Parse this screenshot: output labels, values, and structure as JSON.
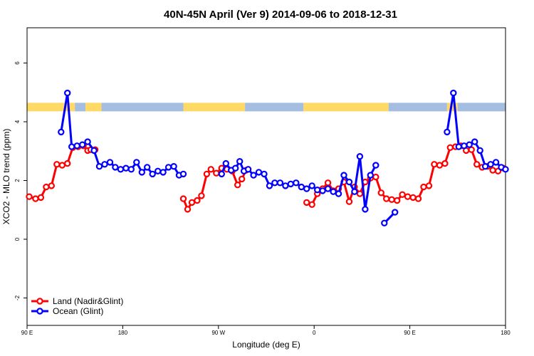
{
  "chart_data": {
    "type": "line",
    "title": "40N-45N April (Ver 9)   2014-09-06 to 2018-12-31",
    "xlabel": "Longitude (deg E)",
    "ylabel": "XCO2 - MLO trend (ppm)",
    "x_ticks": [
      {
        "value": 90,
        "label": "90 E"
      },
      {
        "value": 180,
        "label": "180"
      },
      {
        "value": 270,
        "label": "90 W"
      },
      {
        "value": 360,
        "label": "0"
      },
      {
        "value": 450,
        "label": "90 E"
      },
      {
        "value": 540,
        "label": "180"
      }
    ],
    "y_ticks": [
      -2,
      0,
      2,
      4,
      6
    ],
    "xlim": [
      90,
      540
    ],
    "ylim": [
      -3,
      7.2
    ],
    "grid": false,
    "legend_position": "bottom-left",
    "land_sea_bar": {
      "y": 4.5,
      "segments": [
        {
          "from": 90,
          "to": 135,
          "color": "#ffd966"
        },
        {
          "from": 135,
          "to": 145,
          "color": "#a4bde0"
        },
        {
          "from": 145,
          "to": 160,
          "color": "#ffd966"
        },
        {
          "from": 160,
          "to": 237,
          "color": "#a4bde0"
        },
        {
          "from": 237,
          "to": 295,
          "color": "#ffd966"
        },
        {
          "from": 295,
          "to": 350,
          "color": "#a4bde0"
        },
        {
          "from": 350,
          "to": 430,
          "color": "#ffd966"
        },
        {
          "from": 430,
          "to": 485,
          "color": "#a4bde0"
        },
        {
          "from": 485,
          "to": 495,
          "color": "#ffd966"
        },
        {
          "from": 495,
          "to": 540,
          "color": "#a4bde0"
        }
      ]
    },
    "series": [
      {
        "name": "Land (Nadir&Glint)",
        "color": "#ff0000",
        "segments": [
          {
            "x": [
              92,
              98,
              103,
              108,
              113,
              118,
              123,
              128,
              133,
              138,
              143,
              147,
              150,
              154
            ],
            "y": [
              1.45,
              1.38,
              1.42,
              1.78,
              1.82,
              2.55,
              2.52,
              2.58,
              3.12,
              3.15,
              3.18,
              3.02,
              3.05,
              3.05
            ]
          },
          {
            "x": [
              237,
              241,
              245,
              250,
              254,
              259,
              263,
              268,
              273,
              278,
              283,
              288,
              292,
              296
            ],
            "y": [
              1.38,
              1.02,
              1.25,
              1.32,
              1.48,
              2.22,
              2.38,
              2.25,
              2.42,
              2.38,
              2.32,
              1.85,
              2.05,
              2.35
            ]
          },
          {
            "x": [
              353,
              358,
              363,
              368,
              373,
              378,
              383,
              388,
              393,
              398,
              403,
              408,
              413,
              418,
              423,
              428,
              433,
              438,
              443,
              448,
              453,
              458,
              463,
              468,
              473,
              478,
              483,
              488,
              493,
              498,
              503,
              508,
              513,
              518,
              523,
              528,
              533,
              538
            ],
            "y": [
              1.25,
              1.18,
              1.55,
              1.72,
              1.92,
              1.65,
              1.72,
              1.95,
              1.28,
              1.78,
              1.55,
              1.95,
              2.08,
              2.12,
              1.58,
              1.38,
              1.35,
              1.32,
              1.52,
              1.45,
              1.42,
              1.38,
              1.78,
              1.82,
              2.55,
              2.52,
              2.58,
              3.12,
              3.15,
              3.18,
              3.02,
              3.05,
              2.55,
              2.45,
              2.48,
              2.35,
              2.32,
              2.42
            ]
          }
        ]
      },
      {
        "name": "Ocean (Glint)",
        "color": "#0000ff",
        "segments": [
          {
            "x": [
              122,
              128,
              132,
              137,
              142,
              147,
              153,
              158,
              163,
              168,
              173,
              178,
              183,
              188,
              193,
              198,
              203,
              208,
              213,
              218,
              223,
              228,
              233,
              237
            ],
            "y": [
              3.65,
              4.98,
              3.15,
              3.18,
              3.22,
              3.32,
              3.02,
              2.48,
              2.55,
              2.62,
              2.45,
              2.38,
              2.42,
              2.38,
              2.62,
              2.28,
              2.45,
              2.22,
              2.32,
              2.28,
              2.45,
              2.48,
              2.18,
              2.22
            ]
          },
          {
            "x": [
              273,
              277,
              282,
              286,
              290,
              294,
              298,
              303,
              308,
              313,
              318,
              323,
              328,
              333,
              338,
              343,
              348,
              353,
              358,
              363,
              368,
              373,
              378,
              383,
              388,
              393,
              398,
              403,
              408,
              413,
              418
            ],
            "y": [
              2.22,
              2.58,
              2.35,
              2.42,
              2.65,
              2.32,
              2.38,
              2.18,
              2.28,
              2.22,
              1.82,
              1.92,
              1.92,
              1.82,
              1.88,
              1.92,
              1.78,
              1.72,
              1.82,
              1.68,
              1.65,
              1.72,
              1.62,
              1.55,
              2.18,
              1.95,
              1.62,
              2.82,
              1.02,
              2.18,
              2.52
            ]
          },
          {
            "x": [
              426,
              436
            ],
            "y": [
              0.55,
              0.92
            ]
          },
          {
            "x": [
              485,
              491,
              496,
              501,
              506,
              511,
              516,
              521,
              526,
              531,
              536,
              540
            ],
            "y": [
              3.65,
              4.98,
              3.15,
              3.18,
              3.22,
              3.32,
              3.02,
              2.48,
              2.55,
              2.62,
              2.45,
              2.38
            ]
          }
        ]
      }
    ]
  }
}
